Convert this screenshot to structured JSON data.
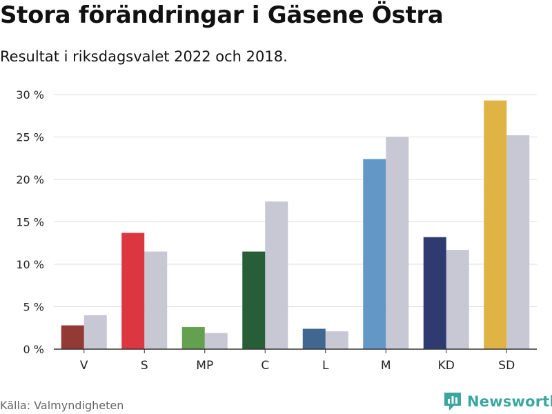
{
  "header": {
    "title": "Stora förändringar i Gäsene Östra",
    "subtitle": "Resultat i riksdagsvalet 2022 och 2018."
  },
  "footer": {
    "source": "Källa: Valmyndigheten",
    "brand": "Newsworthy"
  },
  "colors": {
    "previous": "#c8c7d4",
    "grid": "#dcdcdc",
    "axis": "#333333",
    "brand": "#3aa6a0"
  },
  "chart_data": {
    "type": "bar",
    "title": "Stora förändringar i Gäsene Östra",
    "subtitle": "Resultat i riksdagsvalet 2022 och 2018.",
    "xlabel": "",
    "ylabel": "",
    "ylim": [
      0,
      30
    ],
    "yticks": [
      0,
      5,
      10,
      15,
      20,
      25,
      30
    ],
    "ytick_labels": [
      "0 %",
      "5 %",
      "10 %",
      "15 %",
      "20 %",
      "25 %",
      "30 %"
    ],
    "categories": [
      "V",
      "S",
      "MP",
      "C",
      "L",
      "M",
      "KD",
      "SD"
    ],
    "series": [
      {
        "name": "2022",
        "values": [
          2.8,
          13.7,
          2.6,
          11.5,
          2.4,
          22.4,
          13.2,
          29.3
        ],
        "colors": [
          "#943a36",
          "#dc3640",
          "#63a04f",
          "#275e37",
          "#41668f",
          "#6397c6",
          "#2f3b70",
          "#dfb444"
        ]
      },
      {
        "name": "2018",
        "values": [
          4.0,
          11.5,
          1.9,
          17.4,
          2.1,
          25.0,
          11.7,
          25.2
        ],
        "color": "#c8c7d4"
      }
    ],
    "grid": true,
    "legend": "none"
  }
}
